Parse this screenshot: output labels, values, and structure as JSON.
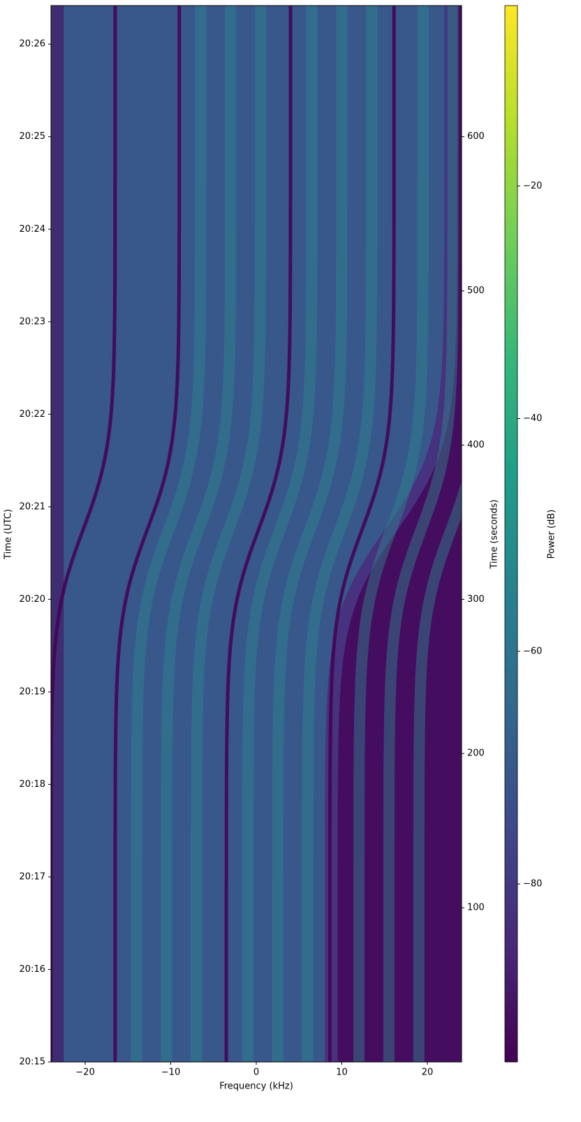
{
  "chart_data": {
    "type": "spectrogram",
    "xlabel": "Frequency (kHz)",
    "ylabel": "Time (UTC)",
    "y2label": "Time (seconds)",
    "xlim": [
      -24,
      24
    ],
    "xticks": [
      {
        "value": -20,
        "label": "−20"
      },
      {
        "value": -10,
        "label": "−10"
      },
      0,
      10,
      20
    ],
    "ylim": [
      0,
      685
    ],
    "yticks": [
      {
        "value": 0,
        "label": "20:15"
      },
      {
        "value": 60,
        "label": "20:16"
      },
      {
        "value": 120,
        "label": "20:17"
      },
      {
        "value": 180,
        "label": "20:18"
      },
      {
        "value": 240,
        "label": "20:19"
      },
      {
        "value": 300,
        "label": "20:20"
      },
      {
        "value": 360,
        "label": "20:21"
      },
      {
        "value": 420,
        "label": "20:22"
      },
      {
        "value": 480,
        "label": "20:23"
      },
      {
        "value": 540,
        "label": "20:24"
      },
      {
        "value": 600,
        "label": "20:25"
      },
      {
        "value": 660,
        "label": "20:26"
      }
    ],
    "y2lim": [
      0,
      685
    ],
    "y2ticks": [
      100,
      200,
      300,
      400,
      500,
      600
    ],
    "colorbar": {
      "label": "Power (dB)",
      "colormap": "viridis",
      "clim": [
        -95.3,
        -4.5
      ],
      "ticks": [
        {
          "value": -20,
          "label": "−20"
        },
        {
          "value": -40,
          "label": "−40"
        },
        {
          "value": -60,
          "label": "−60"
        },
        {
          "value": -80,
          "label": "−80"
        }
      ]
    }
  }
}
